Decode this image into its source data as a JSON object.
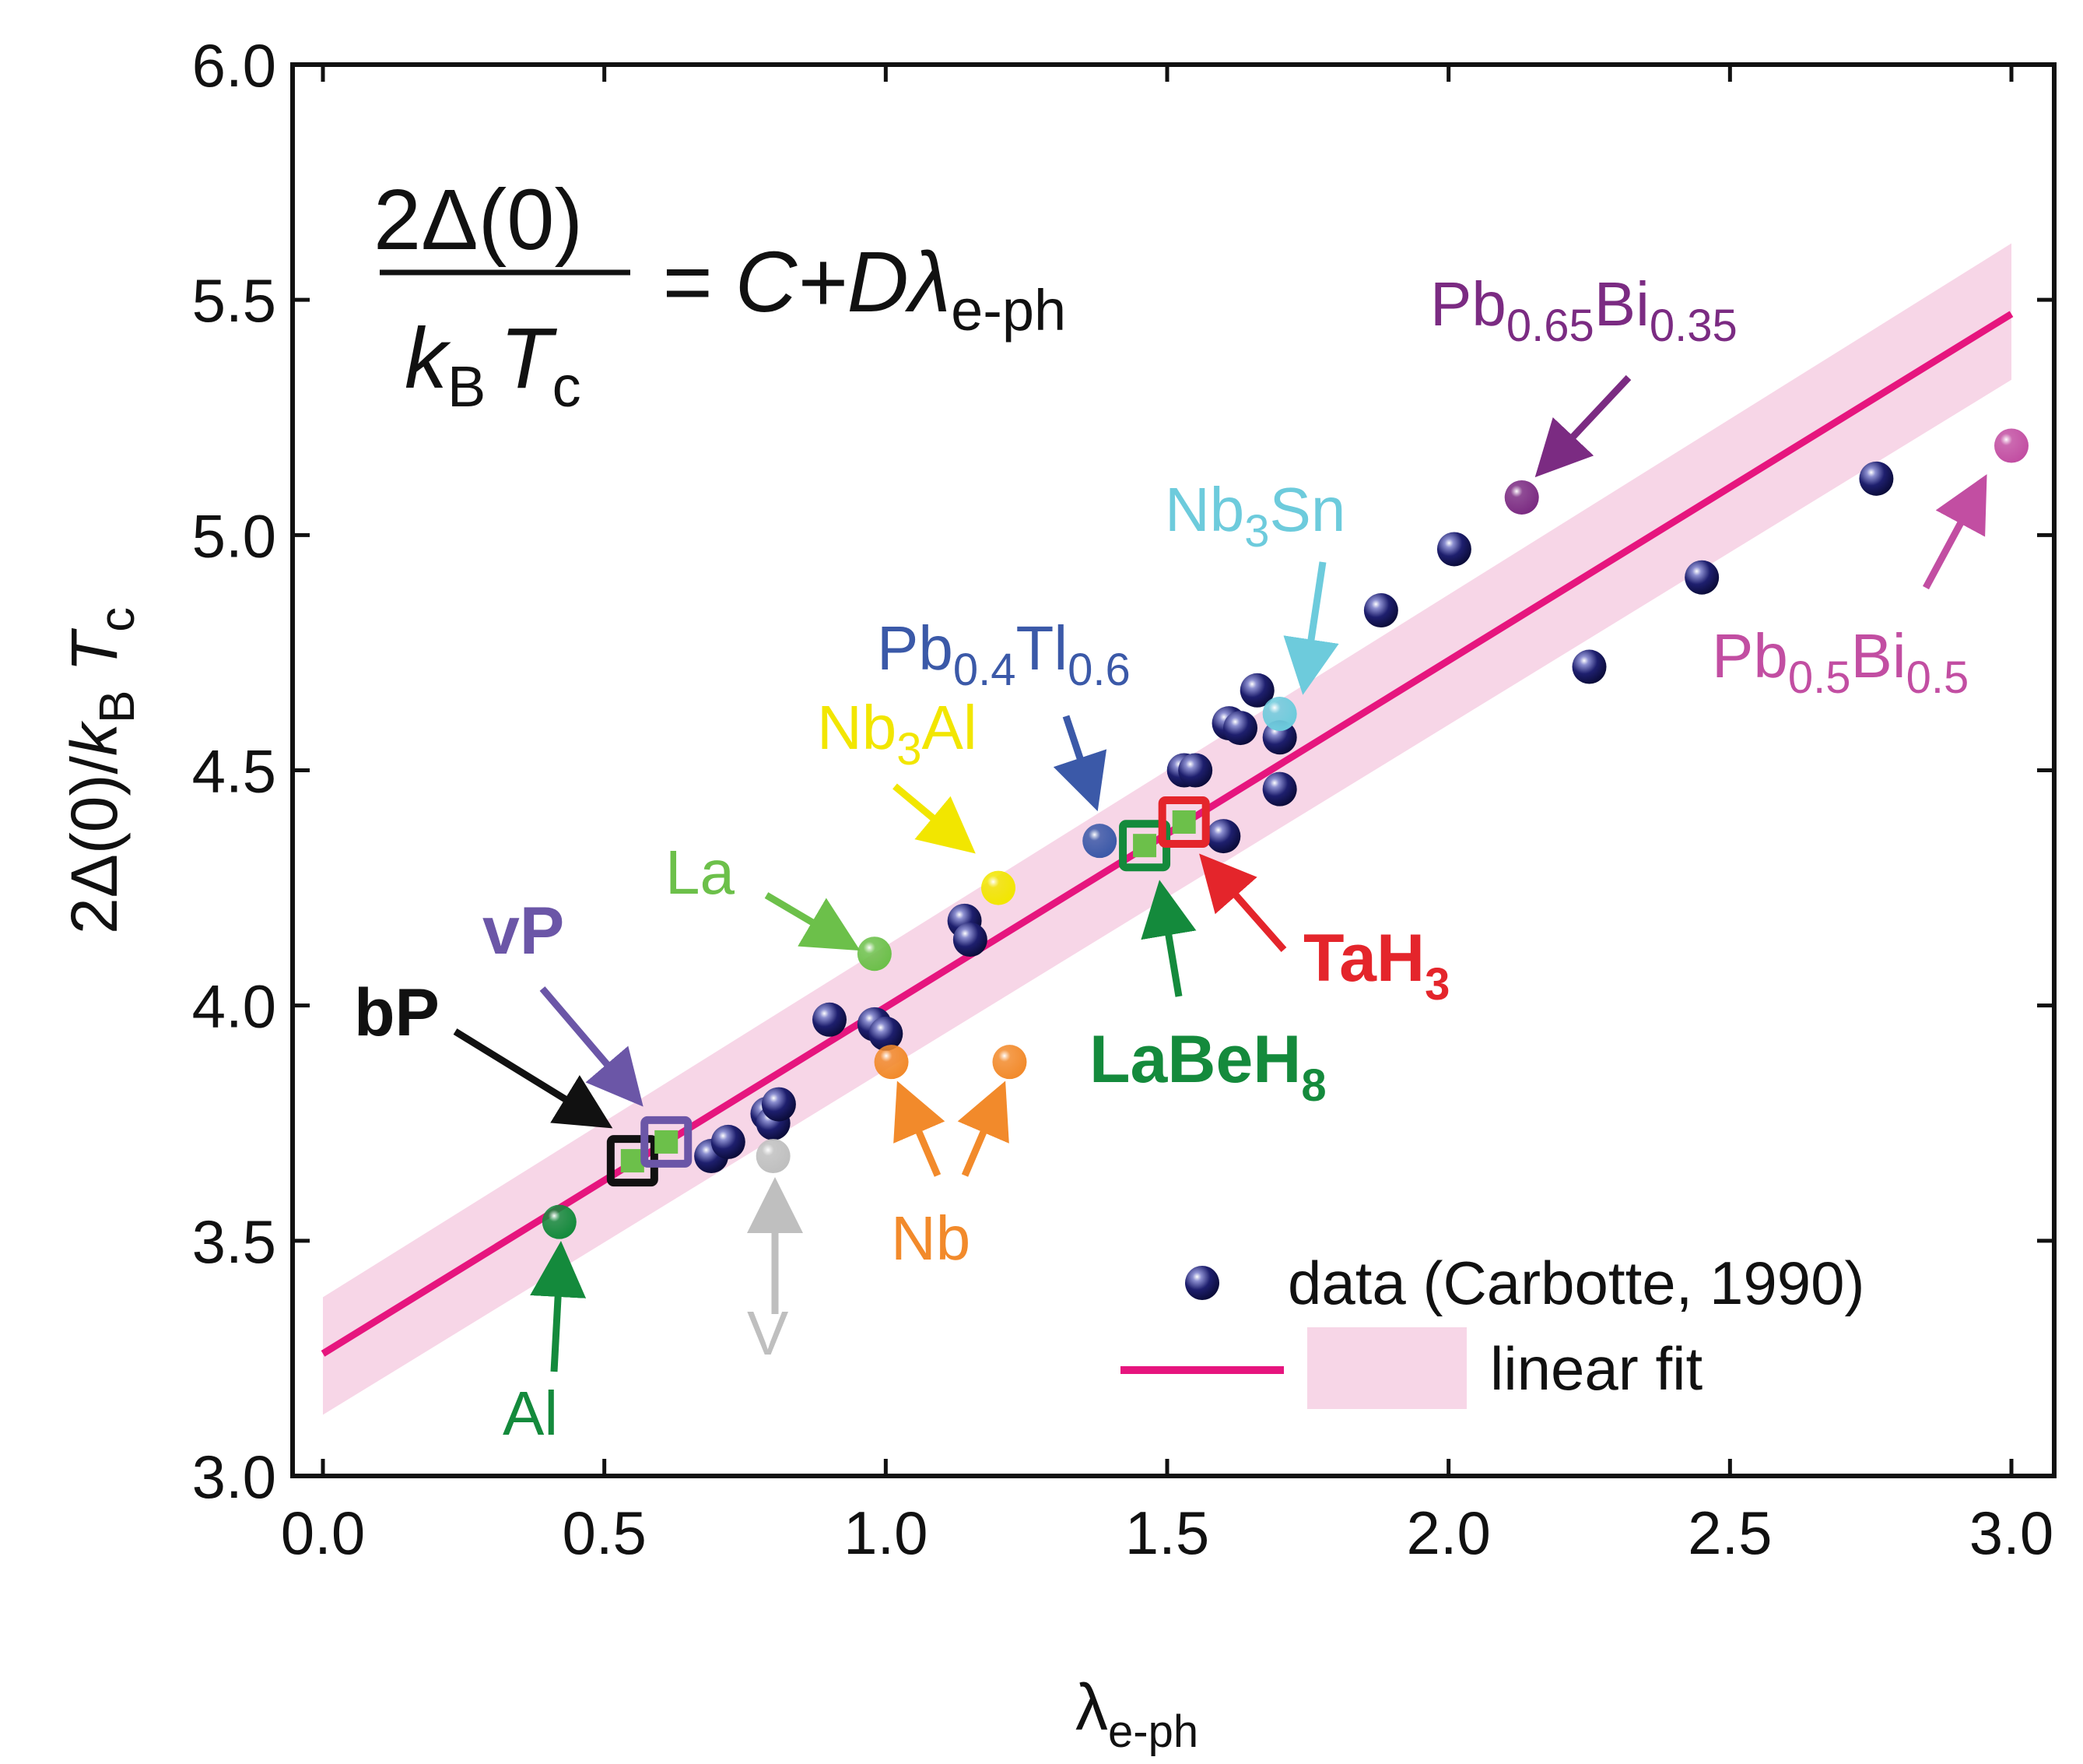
{
  "chart_data": {
    "type": "scatter",
    "xlabel": "λe-ph",
    "ylabel": "2Δ(0)/kBTc",
    "xlim": [
      0.0,
      3.0
    ],
    "ylim": [
      3.0,
      6.0
    ],
    "xticks": [
      "0.0",
      "0.5",
      "1.0",
      "1.5",
      "2.0",
      "2.5",
      "3.0"
    ],
    "yticks": [
      "3.0",
      "3.5",
      "4.0",
      "4.5",
      "5.0",
      "5.5",
      "6.0"
    ],
    "grid": false,
    "legend_position": "bottom-right",
    "equation": {
      "numerator": "2Δ(0)",
      "k": "k",
      "k_sub": "B",
      "t": "T",
      "t_sub": "c",
      "rhs": "= C+Dλ",
      "rhs_sub": "e-ph"
    },
    "series": [
      {
        "name": "data (Carbotte, 1990)",
        "color": "#1e1f6e",
        "points": [
          [
            0.69,
            3.68
          ],
          [
            0.72,
            3.71
          ],
          [
            0.79,
            3.77
          ],
          [
            0.8,
            3.75
          ],
          [
            0.81,
            3.79
          ],
          [
            0.9,
            3.97
          ],
          [
            0.98,
            3.96
          ],
          [
            1.0,
            3.94
          ],
          [
            1.14,
            4.18
          ],
          [
            1.15,
            4.14
          ],
          [
            1.53,
            4.5
          ],
          [
            1.55,
            4.5
          ],
          [
            1.6,
            4.36
          ],
          [
            1.61,
            4.6
          ],
          [
            1.63,
            4.59
          ],
          [
            1.66,
            4.67
          ],
          [
            1.7,
            4.57
          ],
          [
            1.7,
            4.46
          ],
          [
            1.88,
            4.84
          ],
          [
            2.01,
            4.97
          ],
          [
            2.25,
            4.72
          ],
          [
            2.45,
            4.91
          ],
          [
            2.76,
            5.12
          ]
        ]
      }
    ],
    "fit": {
      "name": "linear fit",
      "color": "#e6157e",
      "band_color": "#f7d6e7",
      "x": [
        0.0,
        3.0
      ],
      "y": [
        3.26,
        5.47
      ],
      "band_lower": [
        3.13,
        5.33
      ],
      "band_upper": [
        3.38,
        5.62
      ]
    },
    "highlighted": [
      {
        "label": "Al",
        "x": 0.42,
        "y": 3.54,
        "color": "#148a3c",
        "shape": "circle"
      },
      {
        "label": "V",
        "x": 0.8,
        "y": 3.68,
        "color": "#bfbfbf",
        "shape": "circle"
      },
      {
        "label": "La",
        "x": 0.98,
        "y": 4.11,
        "color": "#6cc04a",
        "shape": "circle"
      },
      {
        "label": "Nb",
        "x": 1.01,
        "y": 3.88,
        "color": "#f28a2b",
        "shape": "circle"
      },
      {
        "label": "Nb",
        "x": 1.22,
        "y": 3.88,
        "color": "#f28a2b",
        "shape": "circle"
      },
      {
        "label": "Nb3Al",
        "x": 1.2,
        "y": 4.25,
        "color": "#f2e600",
        "shape": "circle"
      },
      {
        "label": "Pb0.4Tl0.6",
        "x": 1.38,
        "y": 4.35,
        "color": "#3b59a8",
        "shape": "circle"
      },
      {
        "label": "Nb3Sn",
        "x": 1.7,
        "y": 4.62,
        "color": "#6dcbdc",
        "shape": "circle"
      },
      {
        "label": "Pb0.65Bi0.35",
        "x": 2.13,
        "y": 5.08,
        "color": "#7b2b82",
        "shape": "circle"
      },
      {
        "label": "Pb0.5Bi0.5",
        "x": 3.0,
        "y": 5.19,
        "color": "#c24ea2",
        "shape": "circle"
      },
      {
        "label": "bP",
        "x": 0.55,
        "y": 3.67,
        "color": "#111111",
        "shape": "square"
      },
      {
        "label": "vP",
        "x": 0.61,
        "y": 3.71,
        "color": "#6b56a7",
        "shape": "square"
      },
      {
        "label": "LaBeH8",
        "x": 1.46,
        "y": 4.34,
        "color": "#148a3c",
        "shape": "square"
      },
      {
        "label": "TaH3",
        "x": 1.53,
        "y": 4.39,
        "color": "#e4252b",
        "shape": "square"
      }
    ],
    "annotations": {
      "al": {
        "main": "Al",
        "color": "#148a3c"
      },
      "v": {
        "main": "V",
        "color": "#bfbfbf"
      },
      "la": {
        "main": "La",
        "color": "#6cc04a"
      },
      "nb": {
        "main": "Nb",
        "color": "#f28a2b"
      },
      "nb3al": {
        "a": "Nb",
        "sa": "3",
        "b": "Al",
        "color": "#f2e600"
      },
      "pbtl": {
        "a": "Pb",
        "sa": "0.4",
        "b": "Tl",
        "sb": "0.6",
        "color": "#3b59a8"
      },
      "nb3sn": {
        "a": "Nb",
        "sa": "3",
        "b": "Sn",
        "color": "#6dcbdc"
      },
      "pb65": {
        "a": "Pb",
        "sa": "0.65",
        "b": "Bi",
        "sb": "0.35",
        "color": "#7b2b82"
      },
      "pb50": {
        "a": "Pb",
        "sa": "0.5",
        "b": "Bi",
        "sb": "0.5",
        "color": "#c24ea2"
      },
      "bp": {
        "main": "bP",
        "color": "#111111"
      },
      "vp": {
        "main": "vP",
        "color": "#6b56a7"
      },
      "labeh8": {
        "a": "LaBeH",
        "sa": "8",
        "color": "#148a3c"
      },
      "tah3": {
        "a": "TaH",
        "sa": "3",
        "color": "#e4252b"
      }
    }
  }
}
